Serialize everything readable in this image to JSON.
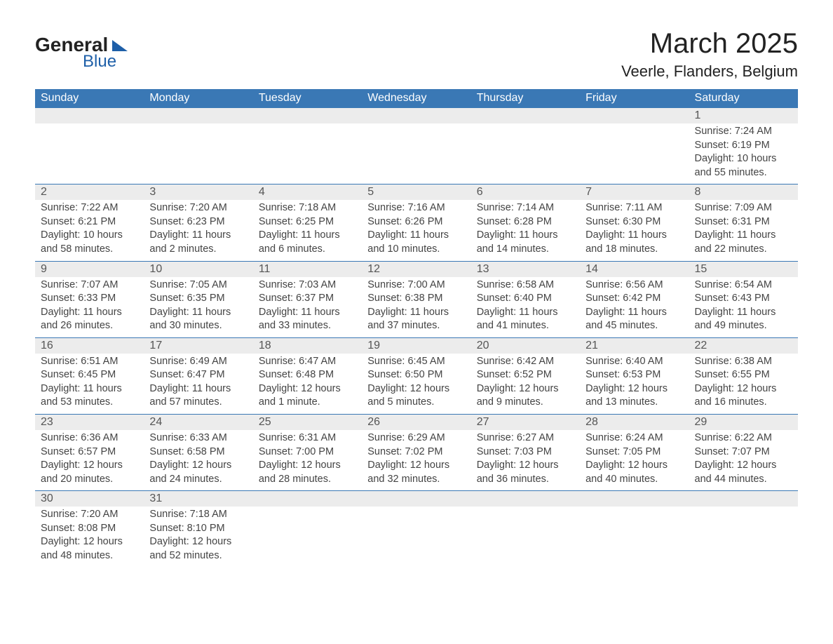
{
  "logo": {
    "general": "General",
    "blue": "Blue"
  },
  "header": {
    "title": "March 2025",
    "location": "Veerle, Flanders, Belgium"
  },
  "colors": {
    "header_bg": "#3a78b5",
    "header_fg": "#ffffff",
    "daynum_bg": "#ececec",
    "row_border": "#3a78b5",
    "text": "#444444",
    "logo_blue": "#1e5fa8"
  },
  "weekdays": [
    "Sunday",
    "Monday",
    "Tuesday",
    "Wednesday",
    "Thursday",
    "Friday",
    "Saturday"
  ],
  "first_weekday_index": 6,
  "days": [
    {
      "n": 1,
      "sr": "7:24 AM",
      "ss": "6:19 PM",
      "dl": "10 hours and 55 minutes."
    },
    {
      "n": 2,
      "sr": "7:22 AM",
      "ss": "6:21 PM",
      "dl": "10 hours and 58 minutes."
    },
    {
      "n": 3,
      "sr": "7:20 AM",
      "ss": "6:23 PM",
      "dl": "11 hours and 2 minutes."
    },
    {
      "n": 4,
      "sr": "7:18 AM",
      "ss": "6:25 PM",
      "dl": "11 hours and 6 minutes."
    },
    {
      "n": 5,
      "sr": "7:16 AM",
      "ss": "6:26 PM",
      "dl": "11 hours and 10 minutes."
    },
    {
      "n": 6,
      "sr": "7:14 AM",
      "ss": "6:28 PM",
      "dl": "11 hours and 14 minutes."
    },
    {
      "n": 7,
      "sr": "7:11 AM",
      "ss": "6:30 PM",
      "dl": "11 hours and 18 minutes."
    },
    {
      "n": 8,
      "sr": "7:09 AM",
      "ss": "6:31 PM",
      "dl": "11 hours and 22 minutes."
    },
    {
      "n": 9,
      "sr": "7:07 AM",
      "ss": "6:33 PM",
      "dl": "11 hours and 26 minutes."
    },
    {
      "n": 10,
      "sr": "7:05 AM",
      "ss": "6:35 PM",
      "dl": "11 hours and 30 minutes."
    },
    {
      "n": 11,
      "sr": "7:03 AM",
      "ss": "6:37 PM",
      "dl": "11 hours and 33 minutes."
    },
    {
      "n": 12,
      "sr": "7:00 AM",
      "ss": "6:38 PM",
      "dl": "11 hours and 37 minutes."
    },
    {
      "n": 13,
      "sr": "6:58 AM",
      "ss": "6:40 PM",
      "dl": "11 hours and 41 minutes."
    },
    {
      "n": 14,
      "sr": "6:56 AM",
      "ss": "6:42 PM",
      "dl": "11 hours and 45 minutes."
    },
    {
      "n": 15,
      "sr": "6:54 AM",
      "ss": "6:43 PM",
      "dl": "11 hours and 49 minutes."
    },
    {
      "n": 16,
      "sr": "6:51 AM",
      "ss": "6:45 PM",
      "dl": "11 hours and 53 minutes."
    },
    {
      "n": 17,
      "sr": "6:49 AM",
      "ss": "6:47 PM",
      "dl": "11 hours and 57 minutes."
    },
    {
      "n": 18,
      "sr": "6:47 AM",
      "ss": "6:48 PM",
      "dl": "12 hours and 1 minute."
    },
    {
      "n": 19,
      "sr": "6:45 AM",
      "ss": "6:50 PM",
      "dl": "12 hours and 5 minutes."
    },
    {
      "n": 20,
      "sr": "6:42 AM",
      "ss": "6:52 PM",
      "dl": "12 hours and 9 minutes."
    },
    {
      "n": 21,
      "sr": "6:40 AM",
      "ss": "6:53 PM",
      "dl": "12 hours and 13 minutes."
    },
    {
      "n": 22,
      "sr": "6:38 AM",
      "ss": "6:55 PM",
      "dl": "12 hours and 16 minutes."
    },
    {
      "n": 23,
      "sr": "6:36 AM",
      "ss": "6:57 PM",
      "dl": "12 hours and 20 minutes."
    },
    {
      "n": 24,
      "sr": "6:33 AM",
      "ss": "6:58 PM",
      "dl": "12 hours and 24 minutes."
    },
    {
      "n": 25,
      "sr": "6:31 AM",
      "ss": "7:00 PM",
      "dl": "12 hours and 28 minutes."
    },
    {
      "n": 26,
      "sr": "6:29 AM",
      "ss": "7:02 PM",
      "dl": "12 hours and 32 minutes."
    },
    {
      "n": 27,
      "sr": "6:27 AM",
      "ss": "7:03 PM",
      "dl": "12 hours and 36 minutes."
    },
    {
      "n": 28,
      "sr": "6:24 AM",
      "ss": "7:05 PM",
      "dl": "12 hours and 40 minutes."
    },
    {
      "n": 29,
      "sr": "6:22 AM",
      "ss": "7:07 PM",
      "dl": "12 hours and 44 minutes."
    },
    {
      "n": 30,
      "sr": "7:20 AM",
      "ss": "8:08 PM",
      "dl": "12 hours and 48 minutes."
    },
    {
      "n": 31,
      "sr": "7:18 AM",
      "ss": "8:10 PM",
      "dl": "12 hours and 52 minutes."
    }
  ],
  "labels": {
    "sunrise": "Sunrise:",
    "sunset": "Sunset:",
    "daylight": "Daylight:"
  }
}
